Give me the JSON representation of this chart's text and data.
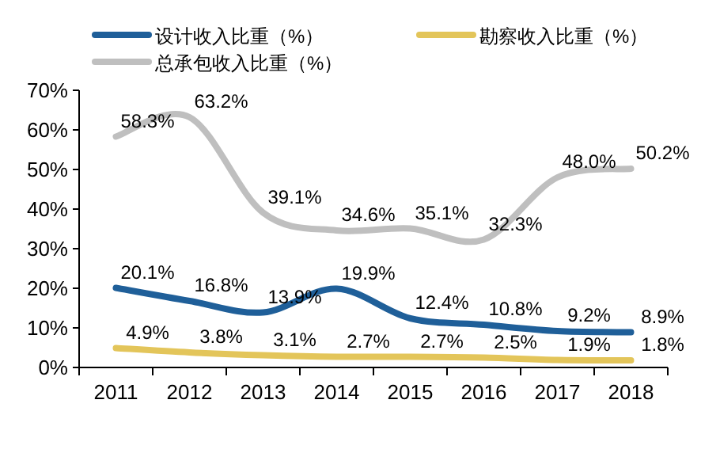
{
  "chart_data": {
    "type": "line",
    "categories": [
      "2011",
      "2012",
      "2013",
      "2014",
      "2015",
      "2016",
      "2017",
      "2018"
    ],
    "series": [
      {
        "name": "设计收入比重（%）",
        "color": "#1f5f99",
        "values": [
          20.1,
          16.8,
          13.9,
          19.9,
          12.4,
          10.8,
          9.2,
          8.9
        ],
        "value_labels": [
          "20.1%",
          "16.8%",
          "13.9%",
          "19.9%",
          "12.4%",
          "10.8%",
          "9.2%",
          "8.9%"
        ]
      },
      {
        "name": "勘察收入比重（%）",
        "color": "#e3c55a",
        "values": [
          4.9,
          3.8,
          3.1,
          2.7,
          2.7,
          2.5,
          1.9,
          1.8
        ],
        "value_labels": [
          "4.9%",
          "3.8%",
          "3.1%",
          "2.7%",
          "2.7%",
          "2.5%",
          "1.9%",
          "1.8%"
        ]
      },
      {
        "name": "总承包收入比重（%）",
        "color": "#bfbfbf",
        "values": [
          58.3,
          63.2,
          39.1,
          34.6,
          35.1,
          32.3,
          48.0,
          50.2
        ],
        "value_labels": [
          "58.3%",
          "63.2%",
          "39.1%",
          "34.6%",
          "35.1%",
          "32.3%",
          "48.0%",
          "50.2%"
        ]
      }
    ],
    "ylim": [
      0,
      70
    ],
    "yticks": [
      {
        "value": 0,
        "label": "0%"
      },
      {
        "value": 10,
        "label": "10%"
      },
      {
        "value": 20,
        "label": "20%"
      },
      {
        "value": 30,
        "label": "30%"
      },
      {
        "value": 40,
        "label": "40%"
      },
      {
        "value": 50,
        "label": "50%"
      },
      {
        "value": 60,
        "label": "60%"
      },
      {
        "value": 70,
        "label": "70%"
      }
    ],
    "legend": "top",
    "grid": false,
    "marker": "none",
    "line_style": "solid"
  }
}
